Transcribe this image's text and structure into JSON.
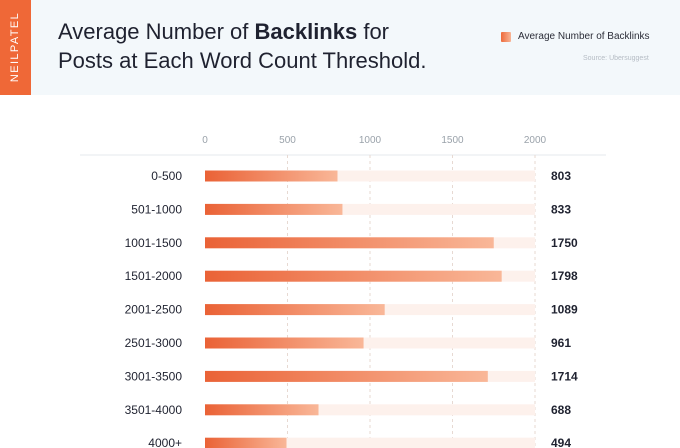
{
  "brand": "NEILPATEL",
  "title": {
    "prefix": "Average Number of ",
    "bold": "Backlinks",
    "suffix": " for",
    "line2": "Posts at Each Word Count Threshold."
  },
  "legend_label": "Average Number of Backlinks",
  "source": "Source: Ubersuggest",
  "colors": {
    "accent": "#ef6837",
    "bar_start": "#ea6236",
    "bar_end": "#f9b798",
    "track": "#fdf1ec",
    "header_bg": "#f3f8fb"
  },
  "chart_data": {
    "type": "bar",
    "orientation": "horizontal",
    "categories": [
      "0-500",
      "501-1000",
      "1001-1500",
      "1501-2000",
      "2001-2500",
      "2501-3000",
      "3001-3500",
      "3501-4000",
      "4000+"
    ],
    "series": [
      {
        "name": "Average Number of Backlinks",
        "values": [
          803,
          833,
          1750,
          1798,
          1089,
          961,
          1714,
          688,
          494
        ]
      }
    ],
    "x_ticks": [
      "0",
      "500",
      "1000",
      "1500",
      "2000"
    ],
    "xlim": [
      0,
      2000
    ],
    "grid": true,
    "legend_position": "top-right"
  }
}
